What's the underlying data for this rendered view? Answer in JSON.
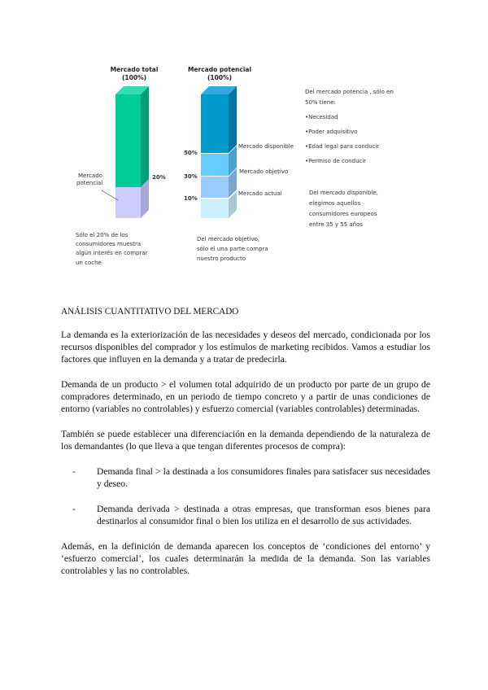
{
  "figure": {
    "left_bar": {
      "title1": "Mercado total",
      "title2": "(100%)",
      "pct_label": "20%",
      "side_label1": "Mercado",
      "side_label2": "potencial",
      "colors": {
        "front": "#00cc99",
        "side": "#009f78",
        "top": "#33ddb3",
        "lower": "#ccccff",
        "lower_side": "#a8a8d8"
      }
    },
    "right_bar": {
      "title1": "Mercado potencial",
      "title2": "(100%)",
      "pct_labels": [
        "50%",
        "30%",
        "10%"
      ],
      "segment_labels": [
        "Mercado disponible",
        "Mercado objetivo",
        "Mercado actual"
      ],
      "colors": [
        "#0099cc",
        "#66ccff",
        "#99ccff",
        "#cceeff"
      ]
    },
    "caption_left": [
      "Sólo el 20% de los",
      "consumidores muestra",
      "algún interés en comprar",
      "un coche"
    ],
    "caption_mid": [
      "Del mercado objetivo,",
      "sólo el una parte compra",
      "nuestro producto"
    ],
    "note_top": [
      "Del mercado potencia , sólo en",
      "50% tiene:"
    ],
    "bullets": [
      "•Necesidad",
      "•Poder adquisitivo",
      "•Edad legal para conducir",
      "•Permiso de conducir"
    ],
    "note_bottom": [
      "Del mercado disponible,",
      "elegimos aquellos",
      "consumidores europeos",
      "entre 35 y 55 años"
    ]
  },
  "heading": "ANÁLISIS CUANTITATIVO DEL MERCADO",
  "paragraphs": [
    "La demanda es la exteriorización de las necesidades y deseos del mercado, condicionada por los recursos disponibles del comprador y los estímulos de marketing recibidos. Vamos a estudiar los factores que influyen en la demanda y a tratar de predecirla.",
    "Demanda de un producto > el volumen total adquirido de un producto por parte de un grupo de compradores determinado, en un periodo de tiempo concreto y a partir de unas condiciones de entorno (variables no controlables) y esfuerzo comercial (variables controlables) determinadas.",
    "También se puede establecer una diferenciación en la demanda dependiendo de la naturaleza de los demandantes (lo que lleva a que tengan diferentes procesos de compra):"
  ],
  "list": [
    {
      "dash": "-",
      "text": "Demanda final > la destinada a los consumidores finales para satisfacer sus necesidades y deseo."
    },
    {
      "dash": "-",
      "text": "Demanda derivada > destinada a otras empresas, que transforman esos bienes para destinarlos al consumidor final o bien los utiliza en el desarrollo de sus actividades."
    }
  ],
  "closing": "Además, en la definición de demanda aparecen los conceptos de ‘condiciones del entorno’ y ‘esfuerzo comercial’, los cuales determinarán la medida de la demanda. Son las variables controlables y las no controlables."
}
